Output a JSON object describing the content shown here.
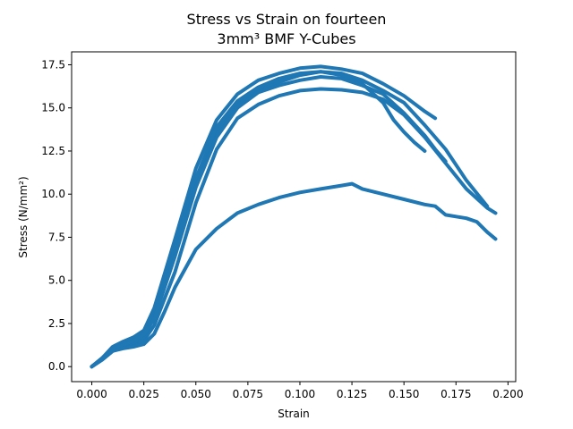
{
  "chart_data": {
    "type": "line",
    "title": [
      "Stress vs Strain on fourteen",
      "3mm³ BMF Y-Cubes"
    ],
    "xlabel": "Strain",
    "ylabel": "Stress (N/mm²)",
    "xlim": [
      -0.0097,
      0.2037
    ],
    "ylim": [
      -0.87,
      18.25
    ],
    "xticks": [
      0.0,
      0.025,
      0.05,
      0.075,
      0.1,
      0.125,
      0.15,
      0.175,
      0.2
    ],
    "xtick_labels": [
      "0.000",
      "0.025",
      "0.050",
      "0.075",
      "0.100",
      "0.125",
      "0.150",
      "0.175",
      "0.200"
    ],
    "yticks": [
      0.0,
      2.5,
      5.0,
      7.5,
      10.0,
      12.5,
      15.0,
      17.5
    ],
    "ytick_labels": [
      "0.0",
      "2.5",
      "5.0",
      "7.5",
      "10.0",
      "12.5",
      "15.0",
      "17.5"
    ],
    "grid": false,
    "color": "#1f77b4",
    "series": [
      {
        "x": [
          0.0,
          0.005,
          0.01,
          0.015,
          0.02,
          0.025,
          0.03,
          0.04,
          0.05,
          0.06,
          0.07,
          0.08,
          0.09,
          0.1,
          0.11,
          0.12,
          0.13,
          0.14,
          0.15,
          0.16,
          0.17,
          0.18,
          0.19,
          0.194
        ],
        "values": [
          0.0,
          0.4,
          0.9,
          1.1,
          1.25,
          1.5,
          2.4,
          5.5,
          9.5,
          12.6,
          14.4,
          15.2,
          15.7,
          16.0,
          16.1,
          16.05,
          15.9,
          15.5,
          14.6,
          13.3,
          11.8,
          10.3,
          9.2,
          8.9
        ]
      },
      {
        "x": [
          0.0,
          0.005,
          0.01,
          0.015,
          0.02,
          0.025,
          0.03,
          0.04,
          0.05,
          0.06,
          0.07,
          0.08,
          0.09,
          0.1,
          0.11,
          0.12,
          0.13,
          0.14,
          0.15,
          0.16,
          0.17,
          0.18,
          0.19
        ],
        "values": [
          0.0,
          0.45,
          1.0,
          1.2,
          1.4,
          1.7,
          2.9,
          6.6,
          10.7,
          13.6,
          15.2,
          16.0,
          16.5,
          16.9,
          17.1,
          17.0,
          16.6,
          16.0,
          15.3,
          14.0,
          12.6,
          10.8,
          9.3
        ]
      },
      {
        "x": [
          0.0,
          0.005,
          0.01,
          0.015,
          0.02,
          0.025,
          0.03,
          0.04,
          0.05,
          0.06,
          0.07,
          0.08,
          0.09,
          0.1,
          0.11,
          0.12,
          0.13,
          0.14,
          0.15,
          0.16,
          0.165
        ],
        "values": [
          0.0,
          0.5,
          1.15,
          1.45,
          1.7,
          2.1,
          3.4,
          7.4,
          11.5,
          14.3,
          15.8,
          16.6,
          17.0,
          17.3,
          17.4,
          17.25,
          17.0,
          16.4,
          15.7,
          14.8,
          14.4
        ]
      },
      {
        "x": [
          0.0,
          0.005,
          0.01,
          0.015,
          0.02,
          0.025,
          0.03,
          0.04,
          0.05,
          0.06,
          0.07,
          0.08,
          0.09,
          0.1,
          0.11,
          0.12,
          0.13,
          0.14,
          0.145,
          0.15,
          0.155,
          0.16
        ],
        "values": [
          0.0,
          0.5,
          1.05,
          1.3,
          1.6,
          1.95,
          3.0,
          6.9,
          10.9,
          13.9,
          15.4,
          16.2,
          16.7,
          17.0,
          17.1,
          16.9,
          16.4,
          15.3,
          14.3,
          13.6,
          13.0,
          12.5
        ]
      },
      {
        "x": [
          0.0,
          0.005,
          0.01,
          0.015,
          0.02,
          0.025,
          0.03,
          0.04,
          0.05,
          0.06,
          0.07,
          0.08,
          0.09,
          0.1,
          0.11,
          0.12,
          0.13,
          0.14,
          0.15,
          0.16,
          0.165,
          0.17
        ],
        "values": [
          0.0,
          0.45,
          1.0,
          1.25,
          1.5,
          1.85,
          2.8,
          6.4,
          10.4,
          13.3,
          15.0,
          15.9,
          16.3,
          16.6,
          16.8,
          16.7,
          16.3,
          15.8,
          14.7,
          13.4,
          12.6,
          11.9
        ]
      },
      {
        "x": [
          0.0,
          0.005,
          0.01,
          0.015,
          0.02,
          0.025,
          0.03,
          0.035,
          0.04,
          0.05,
          0.06,
          0.07,
          0.08,
          0.09,
          0.1,
          0.11,
          0.12,
          0.125,
          0.13,
          0.14,
          0.15,
          0.16,
          0.165,
          0.17,
          0.175,
          0.18,
          0.185,
          0.19,
          0.194
        ],
        "values": [
          0.0,
          0.4,
          0.9,
          1.05,
          1.15,
          1.3,
          1.9,
          3.2,
          4.6,
          6.8,
          8.0,
          8.9,
          9.4,
          9.8,
          10.1,
          10.3,
          10.5,
          10.6,
          10.3,
          10.0,
          9.7,
          9.4,
          9.3,
          8.8,
          8.7,
          8.6,
          8.4,
          7.8,
          7.4
        ]
      }
    ]
  }
}
